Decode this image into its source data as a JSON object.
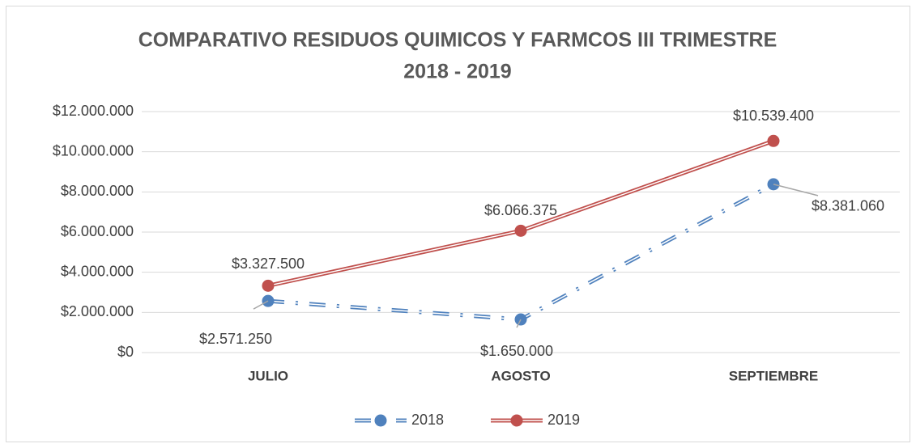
{
  "chart_data": {
    "type": "line",
    "title": [
      "COMPARATIVO RESIDUOS QUIMICOS Y FARMCOS III TRIMESTRE",
      "2018 - 2019"
    ],
    "categories": [
      "JULIO",
      "AGOSTO",
      "SEPTIEMBRE"
    ],
    "series": [
      {
        "name": "2018",
        "color": "#4f81bd",
        "style": "dash-dot",
        "values": [
          2571250,
          1650000,
          8381060
        ],
        "value_labels": [
          "$2.571.250",
          "$1.650.000",
          "$8.381.060"
        ]
      },
      {
        "name": "2019",
        "color": "#c0504d",
        "style": "solid",
        "values": [
          3327500,
          6066375,
          10539400
        ],
        "value_labels": [
          "$3.327.500",
          "$6.066.375",
          "$10.539.400"
        ]
      }
    ],
    "ylim": [
      0,
      12000000
    ],
    "yticks": [
      {
        "value": 0,
        "label": "$0"
      },
      {
        "value": 2000000,
        "label": "$2.000.000"
      },
      {
        "value": 4000000,
        "label": "$4.000.000"
      },
      {
        "value": 6000000,
        "label": "$6.000.000"
      },
      {
        "value": 8000000,
        "label": "$8.000.000"
      },
      {
        "value": 10000000,
        "label": "$10.000.000"
      },
      {
        "value": 12000000,
        "label": "$12.000.000"
      }
    ],
    "grid": true,
    "legend": "bottom"
  }
}
